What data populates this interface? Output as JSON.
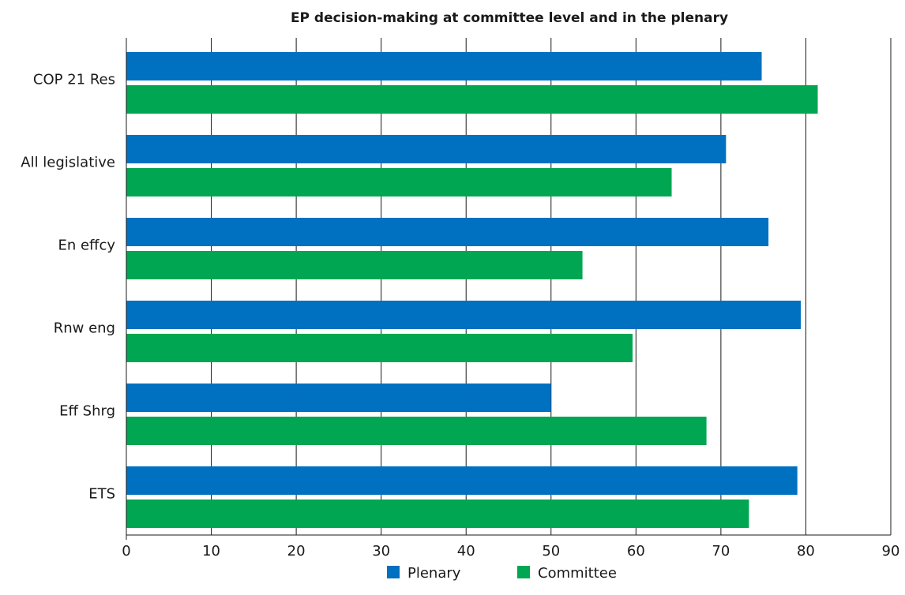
{
  "chart_data": {
    "type": "bar",
    "orientation": "horizontal",
    "title": "EP decision-making at committee level and in the plenary",
    "xlabel": "",
    "ylabel": "",
    "categories": [
      "COP 21 Res",
      "All legislative",
      "En effcy",
      "Rnw eng",
      "Eff Shrg",
      "ETS"
    ],
    "series": [
      {
        "name": "Plenary",
        "color": "#0070c0",
        "values": [
          74.8,
          70.6,
          75.6,
          79.4,
          50.0,
          79.0
        ]
      },
      {
        "name": "Committee",
        "color": "#00a651",
        "values": [
          81.4,
          64.2,
          53.7,
          59.6,
          68.3,
          73.3
        ]
      }
    ],
    "xlim": [
      0,
      90
    ],
    "ticks": [
      "0",
      "10",
      "20",
      "30",
      "40",
      "50",
      "60",
      "70",
      "80",
      "90"
    ],
    "tick_values": [
      0,
      10,
      20,
      30,
      40,
      50,
      60,
      70,
      80,
      90
    ],
    "grid": true,
    "legend_position": "bottom-center"
  }
}
